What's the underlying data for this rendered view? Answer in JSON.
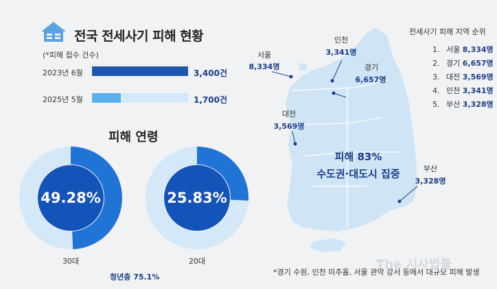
{
  "title": "전국 전세사기 피해 현황",
  "subnote": "(*피해 접수 건수)",
  "chart_data": [
    {
      "type": "bar",
      "categories": [
        "2023년 6월",
        "2025년 5월"
      ],
      "values": [
        3400,
        1700
      ],
      "value_labels": [
        "3,400건",
        "1,700건"
      ],
      "colors": {
        "fill": "#1e56b0",
        "light": "#d3e8f8"
      }
    },
    {
      "type": "pie",
      "title": "피해 연령",
      "donuts": [
        {
          "label": "30대",
          "value": 49.28,
          "value_label": "49.28%"
        },
        {
          "label": "20대",
          "value": 25.83,
          "value_label": "25.83%"
        }
      ],
      "note": "청년층 75.1%"
    }
  ],
  "ranking": {
    "title": "전세사기 피해 지역 순위",
    "items": [
      {
        "rank": "1.",
        "city": "서울",
        "count": "8,334명"
      },
      {
        "rank": "2.",
        "city": "경기",
        "count": "6,657명"
      },
      {
        "rank": "3.",
        "city": "대전",
        "count": "3,569명"
      },
      {
        "rank": "4.",
        "city": "인천",
        "count": "3,341명"
      },
      {
        "rank": "5.",
        "city": "부산",
        "count": "3,328명"
      }
    ]
  },
  "map": {
    "headline1": "피해 83%",
    "headline2": "수도권·대도시 집중",
    "cities": {
      "seoul": {
        "name": "서울",
        "count": "8,334명"
      },
      "incheon": {
        "name": "인천",
        "count": "3,341명"
      },
      "gyeonggi": {
        "name": "경기",
        "count": "6,657명"
      },
      "daejeon": {
        "name": "대전",
        "count": "3,569명"
      },
      "busan": {
        "name": "부산",
        "count": "3,328명"
      }
    }
  },
  "footnote": "*경기 수원, 인천 미추홀, 서울 관악 강서 등에서 대규모 피해 발생",
  "watermark": "The 시사법률",
  "colors": {
    "dark": "#1b3d86",
    "mid": "#1f74d6",
    "light": "#d5e8f7",
    "map": "#cfe5f6",
    "icon": "#5aa2e0"
  }
}
